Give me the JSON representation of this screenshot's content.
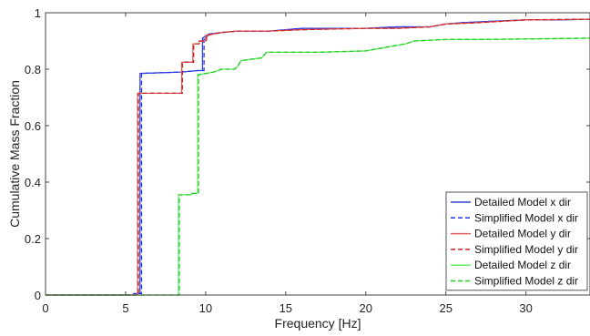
{
  "chart_data": {
    "type": "line",
    "xlabel": "Frequency [Hz]",
    "ylabel": "Cumulative Mass Fraction",
    "xlim": [
      0,
      34
    ],
    "ylim": [
      0,
      1
    ],
    "x_ticks": [
      0,
      5,
      10,
      15,
      20,
      25,
      30
    ],
    "y_ticks": [
      0,
      0.2,
      0.4,
      0.6,
      0.8,
      1
    ],
    "x_tick_labels": [
      "0",
      "5",
      "10",
      "15",
      "20",
      "25",
      "30"
    ],
    "y_tick_labels": [
      "0",
      "0.2",
      "0.4",
      "0.6",
      "0.8",
      "1"
    ],
    "grid": false,
    "legend_position": "bottom-right",
    "series": [
      {
        "name": "Detailed Model x dir",
        "color": "#3344cc",
        "dash": "solid",
        "x": [
          0,
          5.5,
          5.5,
          5.9,
          5.9,
          8.5,
          9.5,
          9.8,
          9.8,
          10.2,
          11.0,
          12.0,
          13.0,
          14.0,
          15.0,
          16.0,
          17.0,
          20.0,
          22.0,
          24.0,
          25.0,
          26.0,
          28.0,
          30.0,
          32.0,
          34.0
        ],
        "y": [
          0,
          0,
          0.005,
          0.005,
          0.785,
          0.79,
          0.795,
          0.795,
          0.91,
          0.925,
          0.93,
          0.935,
          0.935,
          0.935,
          0.94,
          0.945,
          0.945,
          0.945,
          0.95,
          0.95,
          0.96,
          0.965,
          0.97,
          0.975,
          0.975,
          0.977
        ]
      },
      {
        "name": "Simplified Model x dir",
        "color": "#2233ee",
        "dash": "dashed",
        "x": [
          0,
          5.6,
          5.6,
          6.0,
          6.0,
          8.5,
          9.5,
          9.9,
          9.9,
          10.3,
          11.0,
          12.0,
          13.0,
          14.0,
          15.0,
          16.0,
          17.0,
          20.0,
          22.0,
          24.0,
          25.0,
          26.0,
          28.0,
          30.0,
          32.0,
          34.0
        ],
        "y": [
          0,
          0,
          0.005,
          0.005,
          0.785,
          0.79,
          0.795,
          0.795,
          0.91,
          0.925,
          0.93,
          0.935,
          0.935,
          0.935,
          0.94,
          0.945,
          0.945,
          0.945,
          0.95,
          0.95,
          0.96,
          0.965,
          0.97,
          0.975,
          0.975,
          0.977
        ]
      },
      {
        "name": "Detailed Model y dir",
        "color": "#e06060",
        "dash": "solid",
        "x": [
          0,
          5.75,
          5.75,
          8.5,
          8.5,
          9.2,
          9.2,
          9.6,
          9.6,
          10.0,
          10.0,
          11.0,
          12.0,
          14.0,
          16.0,
          20.0,
          22.0,
          24.0,
          25.0,
          27.0,
          30.0,
          34.0
        ],
        "y": [
          0,
          0,
          0.715,
          0.715,
          0.825,
          0.825,
          0.89,
          0.89,
          0.9,
          0.9,
          0.92,
          0.93,
          0.935,
          0.935,
          0.94,
          0.945,
          0.945,
          0.95,
          0.96,
          0.965,
          0.975,
          0.977
        ]
      },
      {
        "name": "Simplified Model y dir",
        "color": "#cc2222",
        "dash": "dashed",
        "x": [
          0,
          5.8,
          5.8,
          8.55,
          8.55,
          9.25,
          9.25,
          9.65,
          9.65,
          10.05,
          10.05,
          11.0,
          12.0,
          14.0,
          16.0,
          20.0,
          22.0,
          24.0,
          25.0,
          27.0,
          30.0,
          34.0
        ],
        "y": [
          0,
          0,
          0.715,
          0.715,
          0.825,
          0.825,
          0.89,
          0.89,
          0.9,
          0.9,
          0.92,
          0.93,
          0.935,
          0.935,
          0.94,
          0.945,
          0.945,
          0.95,
          0.96,
          0.965,
          0.975,
          0.977
        ]
      },
      {
        "name": "Detailed Model z dir",
        "color": "#66ee66",
        "dash": "solid",
        "x": [
          0,
          8.3,
          8.3,
          9.1,
          9.1,
          9.5,
          9.5,
          10.5,
          11.0,
          11.8,
          12.0,
          12.2,
          12.8,
          13.5,
          13.8,
          15.0,
          17.0,
          20.0,
          21.0,
          22.0,
          22.5,
          23.0,
          25.0,
          27.0,
          30.0,
          34.0
        ],
        "y": [
          0,
          0,
          0.355,
          0.355,
          0.36,
          0.36,
          0.78,
          0.79,
          0.8,
          0.8,
          0.81,
          0.83,
          0.835,
          0.84,
          0.86,
          0.86,
          0.86,
          0.865,
          0.875,
          0.885,
          0.89,
          0.9,
          0.905,
          0.905,
          0.907,
          0.91
        ]
      },
      {
        "name": "Simplified Model z dir",
        "color": "#22cc22",
        "dash": "dashed",
        "x": [
          0,
          8.35,
          8.35,
          9.15,
          9.15,
          9.55,
          9.55,
          10.5,
          11.0,
          11.8,
          12.0,
          12.2,
          12.8,
          13.5,
          13.8,
          15.0,
          17.0,
          20.0,
          21.0,
          22.0,
          22.5,
          23.0,
          25.0,
          27.0,
          30.0,
          34.0
        ],
        "y": [
          0,
          0,
          0.355,
          0.355,
          0.36,
          0.36,
          0.78,
          0.79,
          0.8,
          0.8,
          0.81,
          0.83,
          0.835,
          0.84,
          0.86,
          0.86,
          0.86,
          0.865,
          0.875,
          0.885,
          0.89,
          0.9,
          0.905,
          0.905,
          0.907,
          0.91
        ]
      }
    ]
  }
}
